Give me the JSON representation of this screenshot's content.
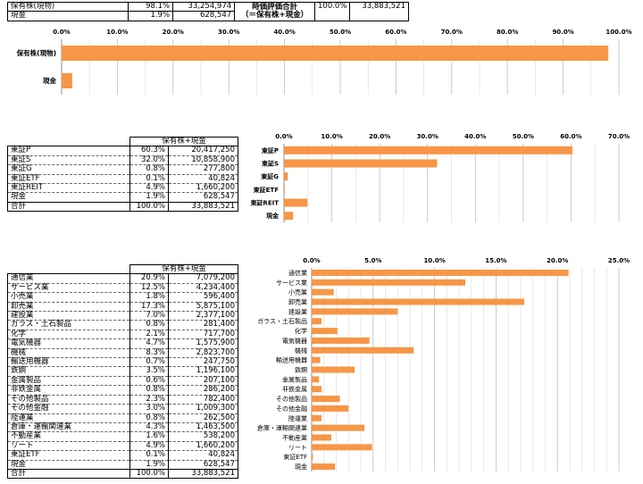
{
  "summary": {
    "rows": [
      {
        "label": "保有株(現物)",
        "pct": "98.1%",
        "value": "33,254,974"
      },
      {
        "label": "現金",
        "pct": "1.9%",
        "value": "628,547"
      }
    ],
    "total_label_1": "時価評価合計",
    "total_label_2": "（＝保有株+現金）",
    "total_pct": "100.0%",
    "total_value": "33,883,521"
  },
  "market_table": {
    "header": "保有株+現金",
    "rows": [
      {
        "label": "東証P",
        "pct": "60.3%",
        "value": "20,417,250"
      },
      {
        "label": "東証S",
        "pct": "32.0%",
        "value": "10,858,900"
      },
      {
        "label": "東証G",
        "pct": "0.8%",
        "value": "277,800"
      },
      {
        "label": "東証ETF",
        "pct": "0.1%",
        "value": "40,824"
      },
      {
        "label": "東証REIT",
        "pct": "4.9%",
        "value": "1,660,200"
      },
      {
        "label": "現金",
        "pct": "1.9%",
        "value": "628,547"
      },
      {
        "label": "合計",
        "pct": "100.0%",
        "value": "33,883,521"
      }
    ]
  },
  "sector_table": {
    "header": "保有株+現金",
    "rows": [
      {
        "label": "通信業",
        "pct": "20.9%",
        "value": "7,079,200"
      },
      {
        "label": "サービス業",
        "pct": "12.5%",
        "value": "4,234,400"
      },
      {
        "label": "小売業",
        "pct": "1.8%",
        "value": "596,400"
      },
      {
        "label": "卸売業",
        "pct": "17.3%",
        "value": "5,875,100"
      },
      {
        "label": "建設業",
        "pct": "7.0%",
        "value": "2,377,100"
      },
      {
        "label": "ガラス・土石製品",
        "pct": "0.8%",
        "value": "281,400"
      },
      {
        "label": "化学",
        "pct": "2.1%",
        "value": "717,700"
      },
      {
        "label": "電気機器",
        "pct": "4.7%",
        "value": "1,575,900"
      },
      {
        "label": "機械",
        "pct": "8.3%",
        "value": "2,823,700"
      },
      {
        "label": "輸送用機器",
        "pct": "0.7%",
        "value": "247,750"
      },
      {
        "label": "鉄鋼",
        "pct": "3.5%",
        "value": "1,196,100"
      },
      {
        "label": "金属製品",
        "pct": "0.6%",
        "value": "207,100"
      },
      {
        "label": "非鉄金属",
        "pct": "0.8%",
        "value": "286,200"
      },
      {
        "label": "その他製品",
        "pct": "2.3%",
        "value": "782,400"
      },
      {
        "label": "その他金融",
        "pct": "3.0%",
        "value": "1,009,300"
      },
      {
        "label": "陸運業",
        "pct": "0.8%",
        "value": "262,500"
      },
      {
        "label": "倉庫・運輸関連業",
        "pct": "4.3%",
        "value": "1,463,500"
      },
      {
        "label": "不動産業",
        "pct": "1.6%",
        "value": "538,200"
      },
      {
        "label": "リート",
        "pct": "4.9%",
        "value": "1,660,200"
      },
      {
        "label": "東証ETF",
        "pct": "0.1%",
        "value": "40,824"
      },
      {
        "label": "現金",
        "pct": "1.9%",
        "value": "628,547"
      },
      {
        "label": "合計",
        "pct": "100.0%",
        "value": "33,883,521"
      }
    ]
  },
  "chart_data": [
    {
      "type": "bar",
      "orientation": "horizontal",
      "categories": [
        "保有株(現物)",
        "現金"
      ],
      "values": [
        98.1,
        1.9
      ],
      "xlim": [
        0,
        100
      ],
      "ticks": [
        "0.0%",
        "10.0%",
        "20.0%",
        "30.0%",
        "40.0%",
        "50.0%",
        "60.0%",
        "70.0%",
        "80.0%",
        "90.0%",
        "100.0%"
      ],
      "tick_values": [
        0,
        10,
        20,
        30,
        40,
        50,
        60,
        70,
        80,
        90,
        100
      ],
      "grid": true,
      "bar_color": "#f79646"
    },
    {
      "type": "bar",
      "orientation": "horizontal",
      "categories": [
        "東証P",
        "東証S",
        "東証G",
        "東証ETF",
        "東証REIT",
        "現金"
      ],
      "values": [
        60.3,
        32.0,
        0.8,
        0.1,
        4.9,
        1.9
      ],
      "xlim": [
        0,
        70
      ],
      "ticks": [
        "0.0%",
        "10.0%",
        "20.0%",
        "30.0%",
        "40.0%",
        "50.0%",
        "60.0%",
        "70.0%"
      ],
      "tick_values": [
        0,
        10,
        20,
        30,
        40,
        50,
        60,
        70
      ],
      "grid": true,
      "bar_color": "#f79646"
    },
    {
      "type": "bar",
      "orientation": "horizontal",
      "categories": [
        "通信業",
        "サービス業",
        "小売業",
        "卸売業",
        "建設業",
        "ガラス・土石製品",
        "化学",
        "電気機器",
        "機械",
        "輸送用機器",
        "鉄鋼",
        "金属製品",
        "非鉄金属",
        "その他製品",
        "その他金融",
        "陸運業",
        "倉庫・運輸関連業",
        "不動産業",
        "リート",
        "東証ETF",
        "現金"
      ],
      "values": [
        20.9,
        12.5,
        1.8,
        17.3,
        7.0,
        0.8,
        2.1,
        4.7,
        8.3,
        0.7,
        3.5,
        0.6,
        0.8,
        2.3,
        3.0,
        0.8,
        4.3,
        1.6,
        4.9,
        0.1,
        1.9
      ],
      "xlim": [
        0,
        25
      ],
      "ticks": [
        "0.0%",
        "5.0%",
        "10.0%",
        "15.0%",
        "20.0%",
        "25.0%"
      ],
      "tick_values": [
        0,
        5,
        10,
        15,
        20,
        25
      ],
      "grid": true,
      "bar_color": "#f79646"
    }
  ]
}
